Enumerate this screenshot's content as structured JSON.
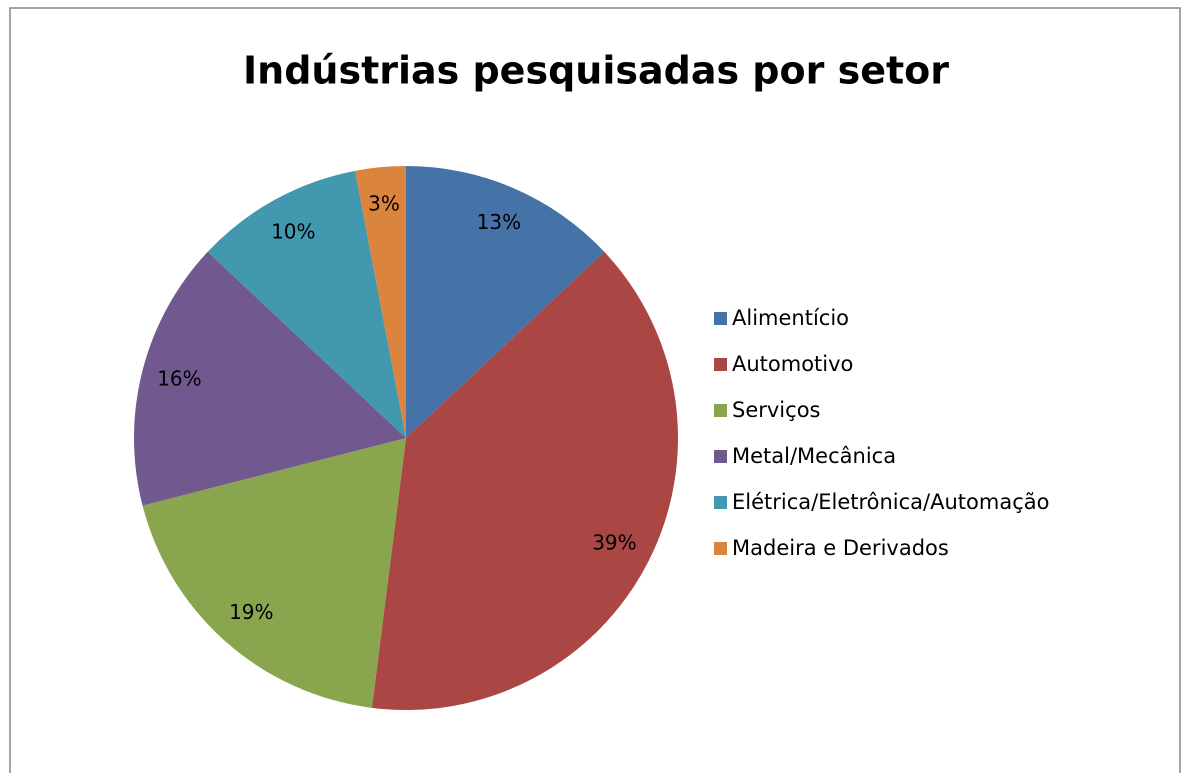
{
  "chart_data": {
    "type": "pie",
    "title": "Indústrias pesquisadas por setor",
    "categories": [
      "Alimentício",
      "Automotivo",
      "Serviços",
      "Metal/Mecânica",
      "Elétrica/Eletrônica/Automação",
      "Madeira e Derivados"
    ],
    "values": [
      13,
      39,
      19,
      16,
      10,
      3
    ],
    "value_labels": [
      "13%",
      "39%",
      "19%",
      "16%",
      "10%",
      "3%"
    ],
    "colors": [
      "#4572a7",
      "#aa4643",
      "#89a54e",
      "#71588f",
      "#4198af",
      "#db843d"
    ],
    "legend": "right"
  }
}
